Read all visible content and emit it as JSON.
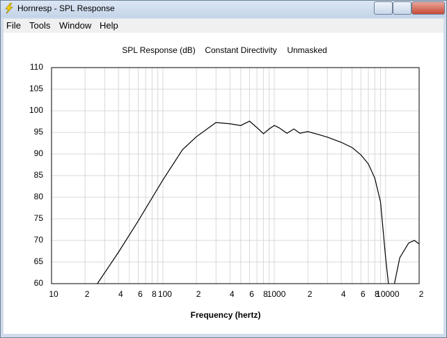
{
  "window": {
    "title": "Hornresp - SPL Response"
  },
  "menu": [
    "File",
    "Tools",
    "Window",
    "Help"
  ],
  "chart_data": {
    "type": "line",
    "title_parts": [
      "SPL Response (dB)",
      "Constant Directivity",
      "Unmasked"
    ],
    "x_label": "Frequency (hertz)",
    "x_scale": "log",
    "xlim": [
      10,
      20000
    ],
    "xticks": [
      10,
      {
        "value": 20,
        "label": "2"
      },
      {
        "value": 40,
        "label": "4"
      },
      {
        "value": 60,
        "label": "6"
      },
      {
        "value": 80,
        "label": "8"
      },
      100,
      {
        "value": 200,
        "label": "2"
      },
      {
        "value": 400,
        "label": "4"
      },
      {
        "value": 600,
        "label": "6"
      },
      {
        "value": 800,
        "label": "8"
      },
      1000,
      {
        "value": 2000,
        "label": "2"
      },
      {
        "value": 4000,
        "label": "4"
      },
      {
        "value": 6000,
        "label": "6"
      },
      {
        "value": 8000,
        "label": "8"
      },
      10000,
      {
        "value": 20000,
        "label": "2"
      }
    ],
    "x_minor_grid": [
      30,
      50,
      70,
      90,
      300,
      500,
      700,
      900,
      3000,
      5000,
      7000,
      9000
    ],
    "ylim": [
      60,
      110
    ],
    "yticks": [
      60,
      65,
      70,
      75,
      80,
      85,
      90,
      95,
      100,
      105,
      110
    ],
    "grid": true,
    "series": [
      {
        "color": "#000000",
        "x": [
          25.8,
          40,
          60,
          100,
          150,
          200,
          300,
          400,
          500,
          600,
          700,
          800,
          900,
          1000,
          1100,
          1300,
          1500,
          1700,
          2000,
          2500,
          3000,
          4000,
          5000,
          6000,
          7000,
          8000,
          9000,
          10000,
          10600,
          11300,
          12000,
          13400,
          16100,
          18100,
          20000
        ],
        "values": [
          60,
          67.3,
          74.5,
          84,
          91,
          94,
          97.3,
          97,
          96.6,
          97.6,
          96.1,
          94.7,
          95.8,
          96.6,
          96.1,
          94.8,
          95.8,
          94.8,
          95.2,
          94.5,
          93.9,
          92.7,
          91.5,
          89.8,
          87.7,
          84.4,
          78.9,
          66,
          60,
          null,
          60,
          66,
          69.4,
          70,
          69.2
        ]
      }
    ]
  }
}
